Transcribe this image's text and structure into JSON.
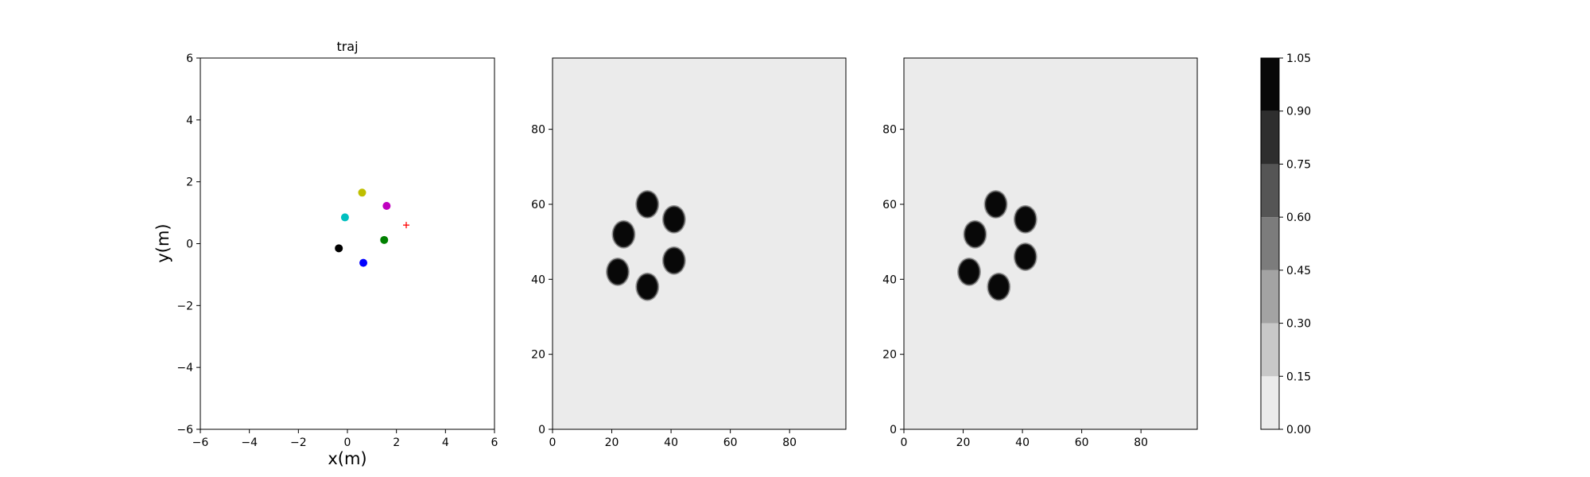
{
  "chart_data": [
    {
      "type": "scatter",
      "title": "traj",
      "xlabel": "x(m)",
      "ylabel": "y(m)",
      "xlim": [
        -6,
        6
      ],
      "ylim": [
        -6,
        6
      ],
      "xticks": [
        "−6",
        "−4",
        "−2",
        "0",
        "2",
        "4",
        "6"
      ],
      "yticks": [
        "−6",
        "−4",
        "−2",
        "0",
        "2",
        "4",
        "6"
      ],
      "grid": false,
      "series": [
        {
          "color": "#000000",
          "marker": "circle",
          "x": [
            -0.35
          ],
          "y": [
            -0.15
          ]
        },
        {
          "color": "#0000ff",
          "marker": "circle",
          "x": [
            0.65
          ],
          "y": [
            -0.62
          ]
        },
        {
          "color": "#008000",
          "marker": "circle",
          "x": [
            1.5
          ],
          "y": [
            0.12
          ]
        },
        {
          "color": "#00bfbf",
          "marker": "circle",
          "x": [
            -0.1
          ],
          "y": [
            0.85
          ]
        },
        {
          "color": "#bfbf00",
          "marker": "circle",
          "x": [
            0.6
          ],
          "y": [
            1.65
          ]
        },
        {
          "color": "#bf00bf",
          "marker": "circle",
          "x": [
            1.6
          ],
          "y": [
            1.22
          ]
        },
        {
          "color": "#ff0000",
          "marker": "plus",
          "x": [
            2.4
          ],
          "y": [
            0.6
          ]
        }
      ]
    },
    {
      "type": "heatmap",
      "title": "",
      "xlim": [
        0,
        99
      ],
      "ylim": [
        0,
        99
      ],
      "xticks": [
        "0",
        "20",
        "40",
        "60",
        "80"
      ],
      "yticks": [
        "0",
        "20",
        "40",
        "60",
        "80"
      ],
      "background_value": 0.05,
      "blobs": [
        {
          "x": 32,
          "y": 60,
          "value": 1.0
        },
        {
          "x": 41,
          "y": 56,
          "value": 1.0
        },
        {
          "x": 24,
          "y": 52,
          "value": 1.0
        },
        {
          "x": 41,
          "y": 45,
          "value": 1.0
        },
        {
          "x": 22,
          "y": 42,
          "value": 1.0
        },
        {
          "x": 32,
          "y": 38,
          "value": 1.0
        }
      ]
    },
    {
      "type": "heatmap",
      "title": "",
      "xlim": [
        0,
        99
      ],
      "ylim": [
        0,
        99
      ],
      "xticks": [
        "0",
        "20",
        "40",
        "60",
        "80"
      ],
      "yticks": [
        "0",
        "20",
        "40",
        "60",
        "80"
      ],
      "background_value": 0.05,
      "blobs": [
        {
          "x": 31,
          "y": 60,
          "value": 1.0
        },
        {
          "x": 41,
          "y": 56,
          "value": 1.0
        },
        {
          "x": 24,
          "y": 52,
          "value": 1.0
        },
        {
          "x": 41,
          "y": 46,
          "value": 1.0
        },
        {
          "x": 22,
          "y": 42,
          "value": 1.0
        },
        {
          "x": 32,
          "y": 38,
          "value": 1.0
        }
      ]
    }
  ],
  "colorbar": {
    "levels": [
      0.0,
      0.15,
      0.3,
      0.45,
      0.6,
      0.75,
      0.9,
      1.05
    ],
    "tick_labels": [
      "0.00",
      "0.15",
      "0.30",
      "0.45",
      "0.60",
      "0.75",
      "0.90",
      "1.05"
    ],
    "colors": [
      "#ebebeb",
      "#c8c8c8",
      "#a3a3a3",
      "#7c7c7c",
      "#555555",
      "#2e2e2e",
      "#080808"
    ]
  }
}
